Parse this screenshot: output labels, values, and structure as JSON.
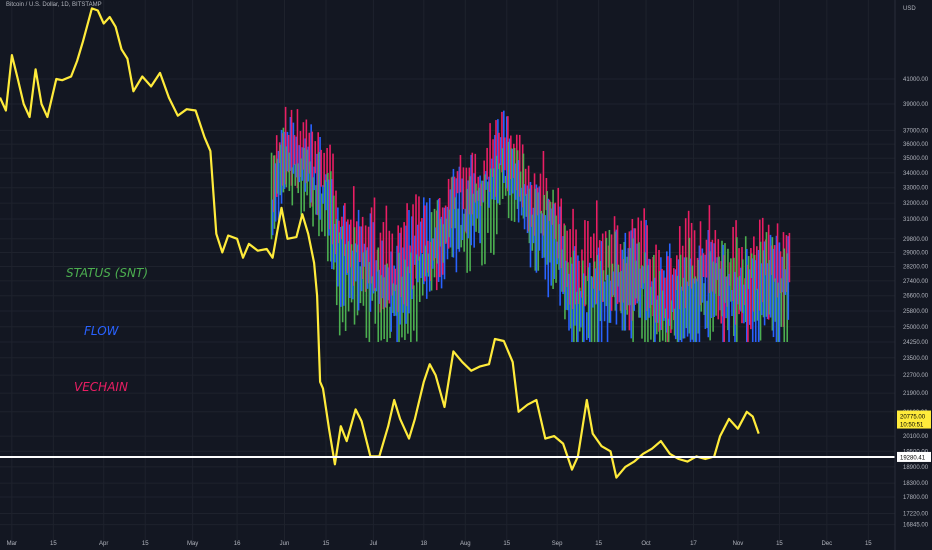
{
  "header": {
    "symbol_line": "Bitcoin / U.S. Dollar, 1D, BITSTAMP"
  },
  "colors": {
    "background": "#131722",
    "grid": "#1e222d",
    "text": "#b2b5be",
    "btc_line": "#ffeb3b",
    "support_line": "#ffffff",
    "status": "#4caf50",
    "flow": "#2962ff",
    "vechain": "#e91e63"
  },
  "chart_data": {
    "type": "line",
    "title": "Bitcoin / U.S. Dollar, 1D, BITSTAMP",
    "currency_label": "USD",
    "y_scale": "log",
    "ylim": [
      16400,
      48000
    ],
    "xlim": [
      "2022-02-25",
      "2022-12-24"
    ],
    "grid": true,
    "x_tick_labels": [
      {
        "date": "2022-03-01",
        "label": "Mar"
      },
      {
        "date": "2022-03-15",
        "label": "15"
      },
      {
        "date": "2022-04-01",
        "label": "Apr"
      },
      {
        "date": "2022-04-15",
        "label": "15"
      },
      {
        "date": "2022-05-01",
        "label": "May"
      },
      {
        "date": "2022-05-16",
        "label": "16"
      },
      {
        "date": "2022-06-01",
        "label": "Jun"
      },
      {
        "date": "2022-06-15",
        "label": "15"
      },
      {
        "date": "2022-07-01",
        "label": "Jul"
      },
      {
        "date": "2022-07-18",
        "label": "18"
      },
      {
        "date": "2022-08-01",
        "label": "Aug"
      },
      {
        "date": "2022-08-15",
        "label": "15"
      },
      {
        "date": "2022-09-01",
        "label": "Sep"
      },
      {
        "date": "2022-09-15",
        "label": "15"
      },
      {
        "date": "2022-10-01",
        "label": "Oct"
      },
      {
        "date": "2022-10-17",
        "label": "17"
      },
      {
        "date": "2022-11-01",
        "label": "Nov"
      },
      {
        "date": "2022-11-15",
        "label": "15"
      },
      {
        "date": "2022-12-01",
        "label": "Dec"
      },
      {
        "date": "2022-12-15",
        "label": "15"
      }
    ],
    "y_tick_labels": [
      "41000.00",
      "39000.00",
      "37000.00",
      "36000.00",
      "35000.00",
      "34000.00",
      "33000.00",
      "32000.00",
      "31000.00",
      "29800.00",
      "29000.00",
      "28200.00",
      "27400.00",
      "26600.00",
      "25800.00",
      "25000.00",
      "24250.00",
      "23500.00",
      "22700.00",
      "21900.00",
      "21100.00",
      "20100.00",
      "19500.00",
      "18900.00",
      "18300.00",
      "17800.00",
      "17220.00",
      "16845.00"
    ],
    "price_tags": [
      {
        "label": "20775.00",
        "sub": "10:50:51",
        "value": 20775,
        "style": "current"
      },
      {
        "label": "19280.41",
        "value": 19280.41,
        "style": "support"
      }
    ],
    "horizontal_lines": [
      {
        "value": 19280.41,
        "name": "support"
      }
    ],
    "series": [
      {
        "kind": "line",
        "color": "#ffeb3b",
        "points": [
          [
            "2022-02-25",
            39500
          ],
          [
            "2022-02-27",
            38500
          ],
          [
            "2022-03-01",
            43000
          ],
          [
            "2022-03-03",
            41000
          ],
          [
            "2022-03-05",
            39000
          ],
          [
            "2022-03-07",
            38000
          ],
          [
            "2022-03-09",
            41800
          ],
          [
            "2022-03-11",
            39000
          ],
          [
            "2022-03-13",
            38000
          ],
          [
            "2022-03-16",
            41000
          ],
          [
            "2022-03-18",
            40900
          ],
          [
            "2022-03-21",
            41200
          ],
          [
            "2022-03-23",
            42500
          ],
          [
            "2022-03-25",
            44200
          ],
          [
            "2022-03-28",
            47200
          ],
          [
            "2022-03-30",
            47000
          ],
          [
            "2022-04-01",
            45800
          ],
          [
            "2022-04-03",
            46400
          ],
          [
            "2022-04-05",
            45500
          ],
          [
            "2022-04-07",
            43500
          ],
          [
            "2022-04-09",
            42700
          ],
          [
            "2022-04-11",
            40000
          ],
          [
            "2022-04-14",
            41200
          ],
          [
            "2022-04-17",
            40400
          ],
          [
            "2022-04-20",
            41500
          ],
          [
            "2022-04-23",
            39500
          ],
          [
            "2022-04-26",
            38100
          ],
          [
            "2022-04-29",
            38600
          ],
          [
            "2022-05-02",
            38500
          ],
          [
            "2022-05-05",
            36500
          ],
          [
            "2022-05-07",
            35500
          ],
          [
            "2022-05-09",
            30100
          ],
          [
            "2022-05-11",
            29000
          ],
          [
            "2022-05-13",
            30000
          ],
          [
            "2022-05-16",
            29800
          ],
          [
            "2022-05-18",
            28700
          ],
          [
            "2022-05-20",
            29500
          ],
          [
            "2022-05-23",
            29100
          ],
          [
            "2022-05-26",
            29200
          ],
          [
            "2022-05-28",
            28700
          ],
          [
            "2022-05-31",
            31700
          ],
          [
            "2022-06-02",
            29800
          ],
          [
            "2022-06-05",
            29900
          ],
          [
            "2022-06-07",
            31300
          ],
          [
            "2022-06-09",
            30100
          ],
          [
            "2022-06-11",
            28400
          ],
          [
            "2022-06-12",
            26600
          ],
          [
            "2022-06-13",
            22400
          ],
          [
            "2022-06-14",
            22100
          ],
          [
            "2022-06-16",
            20400
          ],
          [
            "2022-06-18",
            19000
          ],
          [
            "2022-06-20",
            20500
          ],
          [
            "2022-06-22",
            19900
          ],
          [
            "2022-06-25",
            21200
          ],
          [
            "2022-06-27",
            20700
          ],
          [
            "2022-06-30",
            19300
          ],
          [
            "2022-07-03",
            19300
          ],
          [
            "2022-07-06",
            20500
          ],
          [
            "2022-07-08",
            21600
          ],
          [
            "2022-07-10",
            20800
          ],
          [
            "2022-07-13",
            20000
          ],
          [
            "2022-07-15",
            20800
          ],
          [
            "2022-07-18",
            22400
          ],
          [
            "2022-07-20",
            23200
          ],
          [
            "2022-07-22",
            22700
          ],
          [
            "2022-07-25",
            21300
          ],
          [
            "2022-07-28",
            23800
          ],
          [
            "2022-07-31",
            23300
          ],
          [
            "2022-08-03",
            22900
          ],
          [
            "2022-08-06",
            23100
          ],
          [
            "2022-08-09",
            23200
          ],
          [
            "2022-08-11",
            24400
          ],
          [
            "2022-08-14",
            24300
          ],
          [
            "2022-08-17",
            23300
          ],
          [
            "2022-08-19",
            21100
          ],
          [
            "2022-08-22",
            21400
          ],
          [
            "2022-08-25",
            21600
          ],
          [
            "2022-08-28",
            20000
          ],
          [
            "2022-08-31",
            20100
          ],
          [
            "2022-09-03",
            19800
          ],
          [
            "2022-09-06",
            18800
          ],
          [
            "2022-09-08",
            19300
          ],
          [
            "2022-09-11",
            21600
          ],
          [
            "2022-09-13",
            20200
          ],
          [
            "2022-09-16",
            19700
          ],
          [
            "2022-09-19",
            19500
          ],
          [
            "2022-09-21",
            18500
          ],
          [
            "2022-09-24",
            18900
          ],
          [
            "2022-09-27",
            19100
          ],
          [
            "2022-09-30",
            19400
          ],
          [
            "2022-10-03",
            19600
          ],
          [
            "2022-10-06",
            19900
          ],
          [
            "2022-10-09",
            19400
          ],
          [
            "2022-10-12",
            19200
          ],
          [
            "2022-10-15",
            19100
          ],
          [
            "2022-10-18",
            19300
          ],
          [
            "2022-10-21",
            19200
          ],
          [
            "2022-10-24",
            19300
          ],
          [
            "2022-10-26",
            20100
          ],
          [
            "2022-10-29",
            20800
          ],
          [
            "2022-11-01",
            20400
          ],
          [
            "2022-11-04",
            21100
          ],
          [
            "2022-11-06",
            20900
          ],
          [
            "2022-11-08",
            20200
          ]
        ]
      }
    ],
    "bar_overlay": {
      "kind": "ohlc",
      "date_range": [
        "2022-05-28",
        "2022-11-18"
      ],
      "approx_price_band": [
        24250,
        41500
      ],
      "groups": [
        {
          "name": "STATUS (SNT)",
          "color": "#4caf50"
        },
        {
          "name": "FLOW",
          "color": "#2962ff"
        },
        {
          "name": "VECHAIN",
          "color": "#e91e63"
        }
      ]
    },
    "annotations": [
      {
        "text": "STATUS (SNT)",
        "color": "#4caf50"
      },
      {
        "text": "FLOW",
        "color": "#2962ff"
      },
      {
        "text": "VECHAIN",
        "color": "#e91e63"
      }
    ]
  }
}
